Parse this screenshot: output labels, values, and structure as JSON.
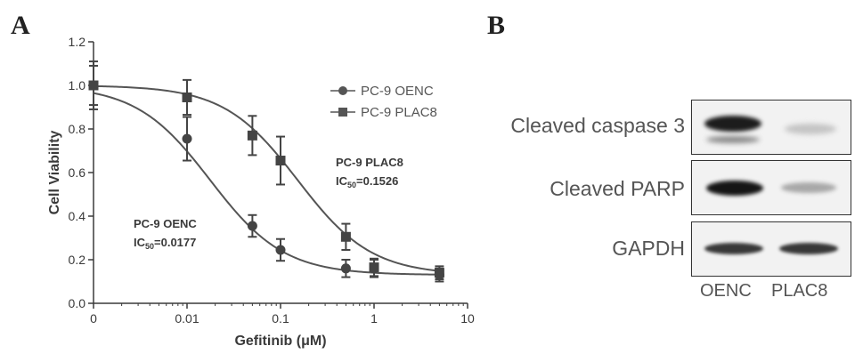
{
  "panels": {
    "a_label": "A",
    "b_label": "B"
  },
  "chart_data": {
    "type": "scatter",
    "xscale": "log",
    "xlabel": "Gefitinib (μM)",
    "ylabel": "Cell Viability",
    "ylim": [
      0,
      1.2
    ],
    "y_ticks": [
      "0.0",
      "0.2",
      "0.4",
      "0.6",
      "0.8",
      "1.0",
      "1.2"
    ],
    "x_ticks": [
      "0",
      "0.01",
      "0.1",
      "1",
      "10"
    ],
    "legend_position": "top-right",
    "series": [
      {
        "name": "PC-9 OENC",
        "marker": "circle",
        "x": [
          0,
          0.01,
          0.05,
          0.1,
          0.5,
          1,
          5
        ],
        "y": [
          1.0,
          0.755,
          0.355,
          0.245,
          0.16,
          0.16,
          0.13
        ],
        "err": [
          0.11,
          0.1,
          0.05,
          0.05,
          0.04,
          0.04,
          0.03
        ],
        "ic50": 0.0177,
        "annotation": {
          "name": "PC-9 OENC",
          "ic_label": "IC",
          "ic_sub": "50",
          "ic_value": "=0.0177"
        }
      },
      {
        "name": "PC-9 PLAC8",
        "marker": "square",
        "x": [
          0,
          0.01,
          0.05,
          0.1,
          0.5,
          1,
          5
        ],
        "y": [
          1.0,
          0.945,
          0.77,
          0.655,
          0.305,
          0.165,
          0.14
        ],
        "err": [
          0.09,
          0.08,
          0.09,
          0.11,
          0.06,
          0.04,
          0.03
        ],
        "ic50": 0.1526,
        "annotation": {
          "name": "PC-9 PLAC8",
          "ic_label": "IC",
          "ic_sub": "50",
          "ic_value": "=0.1526"
        }
      }
    ]
  },
  "blot": {
    "rows": [
      {
        "label": "Cleaved caspase 3"
      },
      {
        "label": "Cleaved PARP"
      },
      {
        "label": "GAPDH"
      }
    ],
    "lanes": [
      "OENC",
      "PLAC8"
    ]
  }
}
